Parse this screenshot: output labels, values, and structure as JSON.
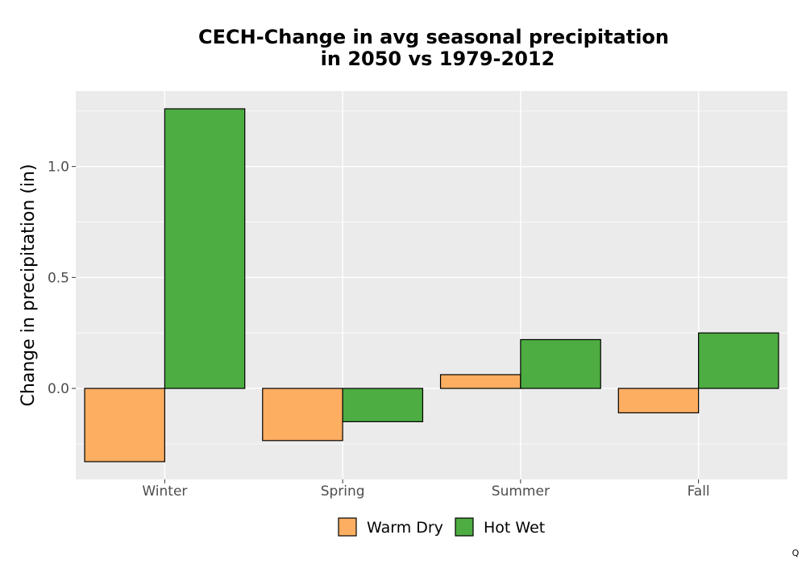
{
  "chart_data": {
    "type": "bar",
    "title_lines": [
      "CECH-Change in avg seasonal precipitation",
      "in 2050 vs 1979-2012"
    ],
    "ylabel": "Change in precipitation (in)",
    "xlabel": "",
    "categories": [
      "Winter",
      "Spring",
      "Summer",
      "Fall"
    ],
    "series": [
      {
        "name": "Warm Dry",
        "color": "#FDAE61",
        "values": [
          -0.33,
          -0.235,
          0.062,
          -0.11
        ]
      },
      {
        "name": "Hot Wet",
        "color": "#4DAC42",
        "values": [
          1.26,
          -0.15,
          0.22,
          0.25
        ]
      }
    ],
    "ylim": [
      -0.41,
      1.34
    ],
    "yticks": [
      0.0,
      0.5,
      1.0
    ],
    "ytick_labels": [
      "0.0",
      "0.5",
      "1.0"
    ],
    "grid": true,
    "panel_background": "#EBEBEB",
    "legend_position": "bottom",
    "corner_mark": "Q"
  }
}
